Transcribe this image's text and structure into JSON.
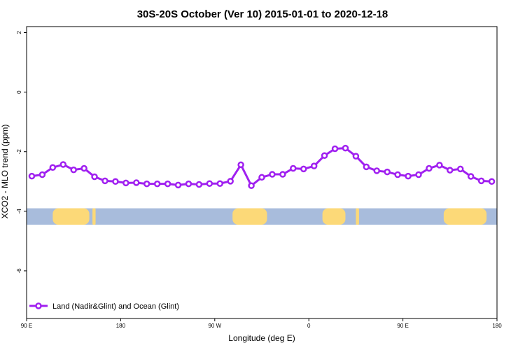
{
  "chart_data": {
    "type": "line",
    "title": "30S-20S October (Ver 10)   2015-01-01 to 2020-12-18",
    "xlabel": "Longitude (deg E)",
    "ylabel": "XCO2 - MLO trend (ppm)",
    "xlim": [
      90,
      540
    ],
    "ylim": [
      -7.6,
      2.2
    ],
    "x_ticks": [
      {
        "value": 90,
        "label": "90 E"
      },
      {
        "value": 180,
        "label": "180"
      },
      {
        "value": 270,
        "label": "90 W"
      },
      {
        "value": 360,
        "label": "0"
      },
      {
        "value": 450,
        "label": "90 E"
      },
      {
        "value": 540,
        "label": "180"
      }
    ],
    "y_ticks": [
      {
        "value": 2,
        "label": "2"
      },
      {
        "value": 0,
        "label": "0"
      },
      {
        "value": -2,
        "label": "-2"
      },
      {
        "value": -4,
        "label": "-4"
      },
      {
        "value": -6,
        "label": "-6"
      }
    ],
    "grid": false,
    "legend_position": "bottom-left",
    "series": [
      {
        "name": "Land (Nadir&Glint) and Ocean (Glint)",
        "color": "#a020f0",
        "x": [
          95,
          105,
          115,
          125,
          135,
          145,
          155,
          165,
          175,
          185,
          195,
          205,
          215,
          225,
          235,
          245,
          255,
          265,
          275,
          285,
          295,
          305,
          315,
          325,
          335,
          345,
          355,
          365,
          375,
          385,
          395,
          405,
          415,
          425,
          435,
          445,
          455,
          465,
          475,
          485,
          495,
          505,
          515,
          525,
          535
        ],
        "y": [
          -2.82,
          -2.77,
          -2.53,
          -2.43,
          -2.61,
          -2.56,
          -2.84,
          -2.98,
          -3.0,
          -3.05,
          -3.04,
          -3.08,
          -3.08,
          -3.08,
          -3.12,
          -3.08,
          -3.1,
          -3.07,
          -3.07,
          -2.99,
          -2.44,
          -3.14,
          -2.86,
          -2.76,
          -2.76,
          -2.56,
          -2.58,
          -2.48,
          -2.13,
          -1.9,
          -1.88,
          -2.15,
          -2.51,
          -2.64,
          -2.68,
          -2.77,
          -2.82,
          -2.77,
          -2.56,
          -2.45,
          -2.62,
          -2.58,
          -2.83,
          -2.98,
          -3.0
        ]
      }
    ],
    "land_ocean_band": {
      "y_range": [
        -4.45,
        -3.9
      ],
      "ocean_color": "#a8bcdc",
      "land_color": "#fcd978",
      "land_segments": [
        [
          115,
          150
        ],
        [
          153,
          156
        ],
        [
          287,
          320
        ],
        [
          373,
          395
        ],
        [
          405,
          408
        ],
        [
          489,
          530
        ]
      ]
    }
  }
}
